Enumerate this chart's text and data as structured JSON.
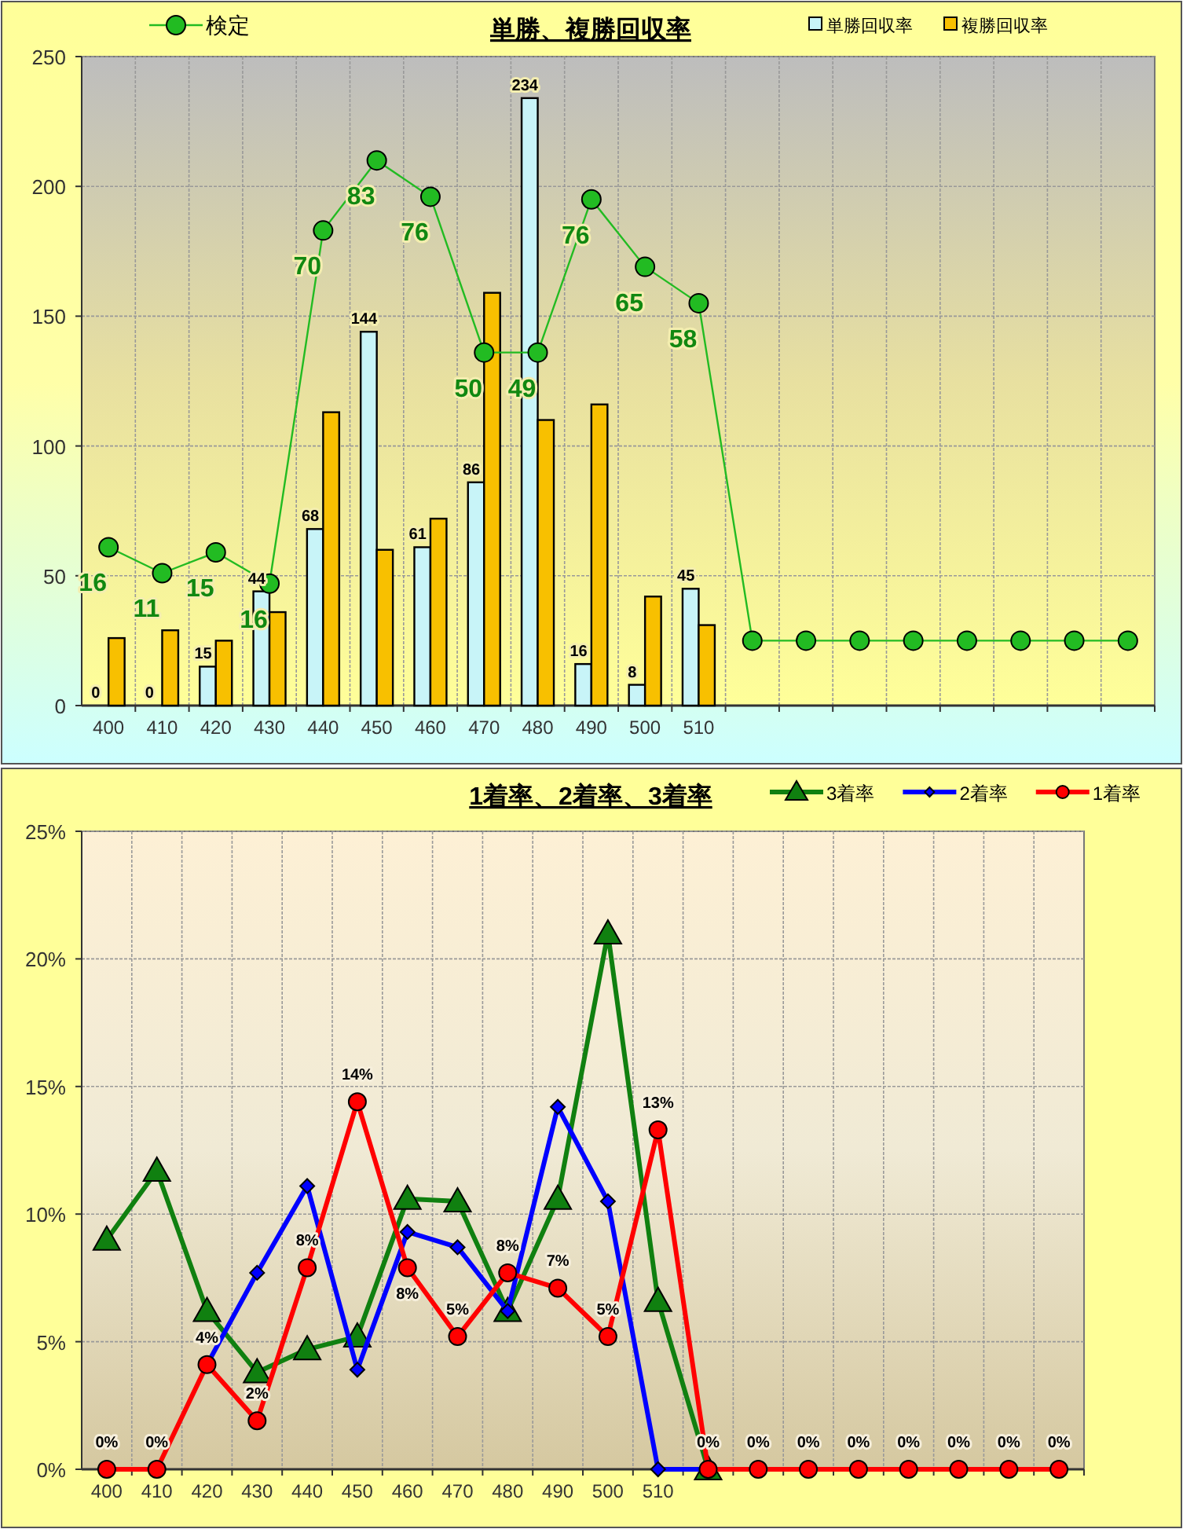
{
  "chart_data": [
    {
      "type": "bar",
      "title": "単勝、複勝回収率",
      "categories": [
        "400",
        "410",
        "420",
        "430",
        "440",
        "450",
        "460",
        "470",
        "480",
        "490",
        "500",
        "510",
        null,
        null,
        null,
        null,
        null,
        null,
        null,
        null
      ],
      "series": [
        {
          "name": "検定",
          "type": "line",
          "color": "#22bb22",
          "marker": "circle",
          "values": [
            61,
            51,
            59,
            47,
            183,
            210,
            196,
            136,
            136,
            195,
            169,
            155,
            25,
            25,
            25,
            25,
            25,
            25,
            25,
            25
          ]
        },
        {
          "name": "単勝回収率",
          "color": "#c8f4f8",
          "values": [
            0,
            0,
            15,
            44,
            68,
            144,
            61,
            86,
            234,
            16,
            8,
            45,
            null,
            null,
            null,
            null,
            null,
            null,
            null,
            null
          ],
          "value_labels": [
            "0",
            "0",
            "15",
            "44",
            "68",
            "144",
            "61",
            "86",
            "234",
            "16",
            "8",
            "45",
            null,
            null,
            null,
            null,
            null,
            null,
            null,
            null
          ]
        },
        {
          "name": "複勝回収率",
          "color": "#f8c000",
          "values": [
            26,
            29,
            25,
            36,
            113,
            60,
            72,
            159,
            110,
            116,
            42,
            31,
            null,
            null,
            null,
            null,
            null,
            null,
            null,
            null
          ]
        }
      ],
      "annotations": [
        {
          "text": "16",
          "x": "400",
          "y": 61
        },
        {
          "text": "11",
          "x": "410",
          "y": 51
        },
        {
          "text": "15",
          "x": "420",
          "y": 59
        },
        {
          "text": "16",
          "x": "430",
          "y": 47
        },
        {
          "text": "70",
          "x": "440",
          "y": 183
        },
        {
          "text": "83",
          "x": "450",
          "y": 210
        },
        {
          "text": "76",
          "x": "460",
          "y": 196
        },
        {
          "text": "50",
          "x": "470",
          "y": 136
        },
        {
          "text": "49",
          "x": "480",
          "y": 136
        },
        {
          "text": "76",
          "x": "490",
          "y": 195
        },
        {
          "text": "65",
          "x": "500",
          "y": 169
        },
        {
          "text": "58",
          "x": "510",
          "y": 155
        }
      ],
      "ylim": [
        0,
        250
      ],
      "yticks": [
        0,
        50,
        100,
        150,
        200,
        250
      ],
      "grid": true,
      "legend": "top"
    },
    {
      "type": "line",
      "title": "1着率、2着率、3着率",
      "categories": [
        "400",
        "410",
        "420",
        "430",
        "440",
        "450",
        "460",
        "470",
        "480",
        "490",
        "500",
        "510",
        null,
        null,
        null,
        null,
        null,
        null,
        null,
        null
      ],
      "series": [
        {
          "name": "3着率",
          "color": "#108010",
          "marker": "triangle",
          "values": [
            9.0,
            11.7,
            6.2,
            3.8,
            4.7,
            5.2,
            10.6,
            10.5,
            6.2,
            10.6,
            21.0,
            6.6,
            0,
            null,
            null,
            null,
            null,
            null,
            null,
            null
          ]
        },
        {
          "name": "2着率",
          "color": "#0000ff",
          "marker": "diamond",
          "values": [
            null,
            null,
            4.1,
            7.7,
            11.1,
            3.9,
            9.3,
            8.7,
            6.2,
            14.2,
            10.5,
            0,
            0,
            null,
            null,
            null,
            null,
            null,
            null,
            null
          ]
        },
        {
          "name": "1着率",
          "color": "#ff0000",
          "marker": "circle",
          "values": [
            0,
            0,
            4.1,
            1.9,
            7.9,
            14.4,
            7.9,
            5.2,
            7.7,
            7.1,
            5.2,
            13.3,
            0,
            0,
            0,
            0,
            0,
            0,
            0,
            0
          ],
          "value_labels": [
            "0%",
            "0%",
            "4%",
            "2%",
            "8%",
            "14%",
            "8%",
            "5%",
            "8%",
            "7%",
            "5%",
            "13%",
            "0%",
            "0%",
            "0%",
            "0%",
            "0%",
            "0%",
            "0%",
            "0%"
          ]
        }
      ],
      "ylim": [
        0,
        25
      ],
      "yticks": [
        {
          "value": 0,
          "label": "0%"
        },
        {
          "value": 5,
          "label": "5%"
        },
        {
          "value": 10,
          "label": "10%"
        },
        {
          "value": 15,
          "label": "15%"
        },
        {
          "value": 20,
          "label": "20%"
        },
        {
          "value": 25,
          "label": "25%"
        }
      ],
      "grid": true,
      "legend": "top right"
    }
  ]
}
